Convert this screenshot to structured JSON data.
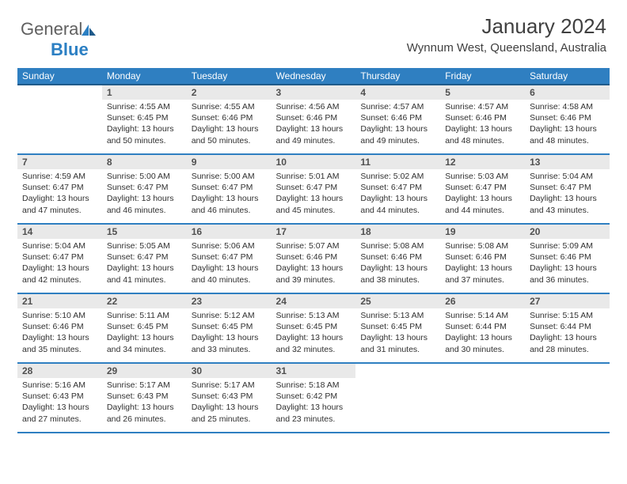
{
  "brand": {
    "part1": "General",
    "part2": "Blue"
  },
  "title": "January 2024",
  "location": "Wynnum West, Queensland, Australia",
  "colors": {
    "header_bg": "#2f7fc1",
    "header_underline": "#1f5a8a",
    "row_border": "#2f7fc1",
    "daynum_bg": "#e9e9e9",
    "text": "#303030",
    "logo_blue": "#2b7fc3"
  },
  "day_names": [
    "Sunday",
    "Monday",
    "Tuesday",
    "Wednesday",
    "Thursday",
    "Friday",
    "Saturday"
  ],
  "weeks": [
    [
      {
        "n": "",
        "sr": "",
        "ss": "",
        "dl": "",
        "empty": true
      },
      {
        "n": "1",
        "sr": "Sunrise: 4:55 AM",
        "ss": "Sunset: 6:45 PM",
        "dl": "Daylight: 13 hours and 50 minutes."
      },
      {
        "n": "2",
        "sr": "Sunrise: 4:55 AM",
        "ss": "Sunset: 6:46 PM",
        "dl": "Daylight: 13 hours and 50 minutes."
      },
      {
        "n": "3",
        "sr": "Sunrise: 4:56 AM",
        "ss": "Sunset: 6:46 PM",
        "dl": "Daylight: 13 hours and 49 minutes."
      },
      {
        "n": "4",
        "sr": "Sunrise: 4:57 AM",
        "ss": "Sunset: 6:46 PM",
        "dl": "Daylight: 13 hours and 49 minutes."
      },
      {
        "n": "5",
        "sr": "Sunrise: 4:57 AM",
        "ss": "Sunset: 6:46 PM",
        "dl": "Daylight: 13 hours and 48 minutes."
      },
      {
        "n": "6",
        "sr": "Sunrise: 4:58 AM",
        "ss": "Sunset: 6:46 PM",
        "dl": "Daylight: 13 hours and 48 minutes."
      }
    ],
    [
      {
        "n": "7",
        "sr": "Sunrise: 4:59 AM",
        "ss": "Sunset: 6:47 PM",
        "dl": "Daylight: 13 hours and 47 minutes."
      },
      {
        "n": "8",
        "sr": "Sunrise: 5:00 AM",
        "ss": "Sunset: 6:47 PM",
        "dl": "Daylight: 13 hours and 46 minutes."
      },
      {
        "n": "9",
        "sr": "Sunrise: 5:00 AM",
        "ss": "Sunset: 6:47 PM",
        "dl": "Daylight: 13 hours and 46 minutes."
      },
      {
        "n": "10",
        "sr": "Sunrise: 5:01 AM",
        "ss": "Sunset: 6:47 PM",
        "dl": "Daylight: 13 hours and 45 minutes."
      },
      {
        "n": "11",
        "sr": "Sunrise: 5:02 AM",
        "ss": "Sunset: 6:47 PM",
        "dl": "Daylight: 13 hours and 44 minutes."
      },
      {
        "n": "12",
        "sr": "Sunrise: 5:03 AM",
        "ss": "Sunset: 6:47 PM",
        "dl": "Daylight: 13 hours and 44 minutes."
      },
      {
        "n": "13",
        "sr": "Sunrise: 5:04 AM",
        "ss": "Sunset: 6:47 PM",
        "dl": "Daylight: 13 hours and 43 minutes."
      }
    ],
    [
      {
        "n": "14",
        "sr": "Sunrise: 5:04 AM",
        "ss": "Sunset: 6:47 PM",
        "dl": "Daylight: 13 hours and 42 minutes."
      },
      {
        "n": "15",
        "sr": "Sunrise: 5:05 AM",
        "ss": "Sunset: 6:47 PM",
        "dl": "Daylight: 13 hours and 41 minutes."
      },
      {
        "n": "16",
        "sr": "Sunrise: 5:06 AM",
        "ss": "Sunset: 6:47 PM",
        "dl": "Daylight: 13 hours and 40 minutes."
      },
      {
        "n": "17",
        "sr": "Sunrise: 5:07 AM",
        "ss": "Sunset: 6:46 PM",
        "dl": "Daylight: 13 hours and 39 minutes."
      },
      {
        "n": "18",
        "sr": "Sunrise: 5:08 AM",
        "ss": "Sunset: 6:46 PM",
        "dl": "Daylight: 13 hours and 38 minutes."
      },
      {
        "n": "19",
        "sr": "Sunrise: 5:08 AM",
        "ss": "Sunset: 6:46 PM",
        "dl": "Daylight: 13 hours and 37 minutes."
      },
      {
        "n": "20",
        "sr": "Sunrise: 5:09 AM",
        "ss": "Sunset: 6:46 PM",
        "dl": "Daylight: 13 hours and 36 minutes."
      }
    ],
    [
      {
        "n": "21",
        "sr": "Sunrise: 5:10 AM",
        "ss": "Sunset: 6:46 PM",
        "dl": "Daylight: 13 hours and 35 minutes."
      },
      {
        "n": "22",
        "sr": "Sunrise: 5:11 AM",
        "ss": "Sunset: 6:45 PM",
        "dl": "Daylight: 13 hours and 34 minutes."
      },
      {
        "n": "23",
        "sr": "Sunrise: 5:12 AM",
        "ss": "Sunset: 6:45 PM",
        "dl": "Daylight: 13 hours and 33 minutes."
      },
      {
        "n": "24",
        "sr": "Sunrise: 5:13 AM",
        "ss": "Sunset: 6:45 PM",
        "dl": "Daylight: 13 hours and 32 minutes."
      },
      {
        "n": "25",
        "sr": "Sunrise: 5:13 AM",
        "ss": "Sunset: 6:45 PM",
        "dl": "Daylight: 13 hours and 31 minutes."
      },
      {
        "n": "26",
        "sr": "Sunrise: 5:14 AM",
        "ss": "Sunset: 6:44 PM",
        "dl": "Daylight: 13 hours and 30 minutes."
      },
      {
        "n": "27",
        "sr": "Sunrise: 5:15 AM",
        "ss": "Sunset: 6:44 PM",
        "dl": "Daylight: 13 hours and 28 minutes."
      }
    ],
    [
      {
        "n": "28",
        "sr": "Sunrise: 5:16 AM",
        "ss": "Sunset: 6:43 PM",
        "dl": "Daylight: 13 hours and 27 minutes."
      },
      {
        "n": "29",
        "sr": "Sunrise: 5:17 AM",
        "ss": "Sunset: 6:43 PM",
        "dl": "Daylight: 13 hours and 26 minutes."
      },
      {
        "n": "30",
        "sr": "Sunrise: 5:17 AM",
        "ss": "Sunset: 6:43 PM",
        "dl": "Daylight: 13 hours and 25 minutes."
      },
      {
        "n": "31",
        "sr": "Sunrise: 5:18 AM",
        "ss": "Sunset: 6:42 PM",
        "dl": "Daylight: 13 hours and 23 minutes."
      },
      {
        "n": "",
        "sr": "",
        "ss": "",
        "dl": "",
        "empty": true
      },
      {
        "n": "",
        "sr": "",
        "ss": "",
        "dl": "",
        "empty": true
      },
      {
        "n": "",
        "sr": "",
        "ss": "",
        "dl": "",
        "empty": true
      }
    ]
  ]
}
